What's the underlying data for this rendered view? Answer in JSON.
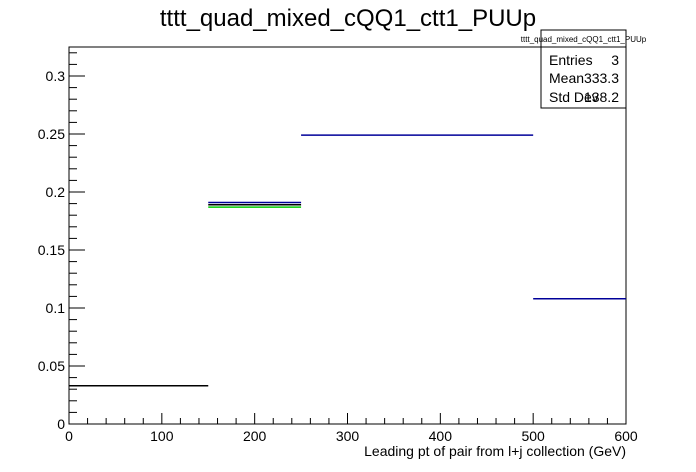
{
  "chart_data": {
    "type": "line",
    "title": "tttt_quad_mixed_cQQ1_ctt1_PUUp",
    "xlabel": "Leading pt of pair from l+j collection (GeV)",
    "ylabel": "",
    "xlim": [
      0,
      600
    ],
    "ylim": [
      0,
      0.325
    ],
    "x_ticks": [
      0,
      100,
      200,
      300,
      400,
      500,
      600
    ],
    "x_tick_labels": [
      "0",
      "100",
      "200",
      "300",
      "400",
      "500",
      "600"
    ],
    "y_ticks": [
      0,
      0.05,
      0.1,
      0.15,
      0.2,
      0.25,
      0.3
    ],
    "y_tick_labels": [
      "0",
      "0.05",
      "0.1",
      "0.15",
      "0.2",
      "0.25",
      "0.3"
    ],
    "grid": false,
    "series": [
      {
        "color": "#000000",
        "bins": [
          {
            "x0": 0,
            "x1": 150,
            "y": 0.033
          },
          {
            "x0": 150,
            "x1": 250,
            "y": 0.189
          }
        ]
      },
      {
        "color": "#00cc00",
        "bins": [
          {
            "x0": 150,
            "x1": 250,
            "y": 0.187
          }
        ]
      },
      {
        "color": "#000099",
        "bins": [
          {
            "x0": 150,
            "x1": 250,
            "y": 0.191
          },
          {
            "x0": 250,
            "x1": 500,
            "y": 0.249
          },
          {
            "x0": 500,
            "x1": 600,
            "y": 0.108
          }
        ]
      }
    ],
    "stats_box": {
      "title": "tttt_quad_mixed_cQQ1_ctt1_PUUp",
      "rows": [
        {
          "label": "Entries",
          "value": "3"
        },
        {
          "label": "Mean",
          "value": "333.3"
        },
        {
          "label": "Std Dev",
          "value": "138.2"
        }
      ],
      "placement": "top-right"
    }
  }
}
